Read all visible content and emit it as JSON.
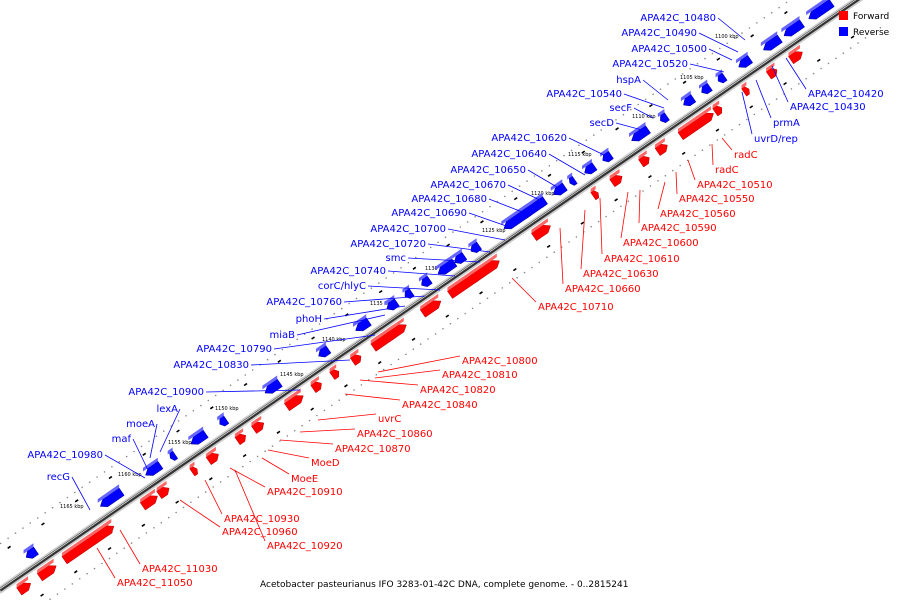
{
  "caption": "Acetobacter pasteurianus IFO 3283-01-42C DNA, complete genome. - 0..2815241",
  "legend": [
    {
      "label": "Forward",
      "color": "#ff0000"
    },
    {
      "label": "Reverse",
      "color": "#0000ff"
    }
  ],
  "colors": {
    "forward": "#ff0000",
    "reverse": "#0000ff",
    "backbone": "#555555"
  },
  "ticks": [
    "1100 kbp",
    "1105 kbp",
    "1110 kbp",
    "1115 kbp",
    "1120 kbp",
    "1125 kbp",
    "1130 kbp",
    "1135 kbp",
    "1140 kbp",
    "1145 kbp",
    "1150 kbp",
    "1155 kbp",
    "1160 kbp",
    "1165 kbp"
  ],
  "reverse_labels": [
    "APA42C_10480",
    "APA42C_10490",
    "APA42C_10500",
    "APA42C_10520",
    "hspA",
    "APA42C_10540",
    "secF",
    "secD",
    "APA42C_10620",
    "APA42C_10640",
    "APA42C_10650",
    "APA42C_10670",
    "APA42C_10680",
    "APA42C_10690",
    "APA42C_10700",
    "APA42C_10720",
    "smc",
    "APA42C_10740",
    "corC/hlyC",
    "APA42C_10760",
    "phoH",
    "miaB",
    "APA42C_10790",
    "APA42C_10830",
    "APA42C_10900",
    "lexA",
    "moeA",
    "maf",
    "APA42C_10980",
    "recG"
  ],
  "right_labels": [
    "APA42C_10420",
    "APA42C_10430",
    "prmA",
    "uvrD/rep"
  ],
  "forward_labels": [
    "radC",
    "radC",
    "APA42C_10510",
    "APA42C_10550",
    "APA42C_10560",
    "APA42C_10590",
    "APA42C_10600",
    "APA42C_10610",
    "APA42C_10630",
    "APA42C_10660",
    "APA42C_10710",
    "APA42C_10800",
    "APA42C_10810",
    "APA42C_10820",
    "APA42C_10840",
    "uvrC",
    "APA42C_10860",
    "APA42C_10870",
    "MoeD",
    "MoeE",
    "APA42C_10910",
    "APA42C_10930",
    "APA42C_10960",
    "APA42C_10920",
    "APA42C_11030",
    "APA42C_11050"
  ]
}
